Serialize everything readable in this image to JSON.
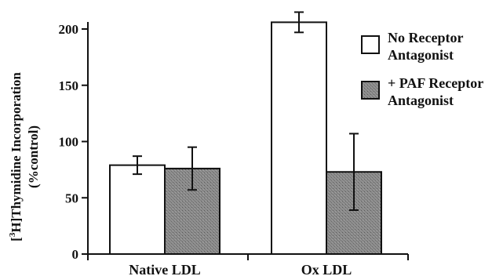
{
  "chart_data": {
    "type": "bar",
    "categories": [
      "Native LDL",
      "Ox LDL"
    ],
    "series": [
      {
        "name": "No Receptor Antagonist",
        "legend_lines": [
          "No Receptor",
          "Antagonist"
        ],
        "fill": "#ffffff",
        "values": [
          79,
          206
        ],
        "error": [
          8,
          9
        ]
      },
      {
        "name": "+ PAF Receptor Antagonist",
        "legend_lines": [
          "+ PAF Receptor",
          "Antagonist"
        ],
        "fill": "#8a8a8a",
        "values": [
          76,
          73
        ],
        "error": [
          19,
          34
        ]
      }
    ],
    "ylim": [
      0,
      200
    ],
    "yticks": [
      0,
      50,
      100,
      150,
      200
    ],
    "ylabel_line1": "[3H]Thymidine Incorporation",
    "ylabel_line1_super": "3",
    "ylabel_line1_bracket": "[",
    "ylabel_line1_rest": "H]Thymidine Incorporation",
    "ylabel_line2": "(%control)",
    "grid": false,
    "legend_position": "top-right"
  }
}
